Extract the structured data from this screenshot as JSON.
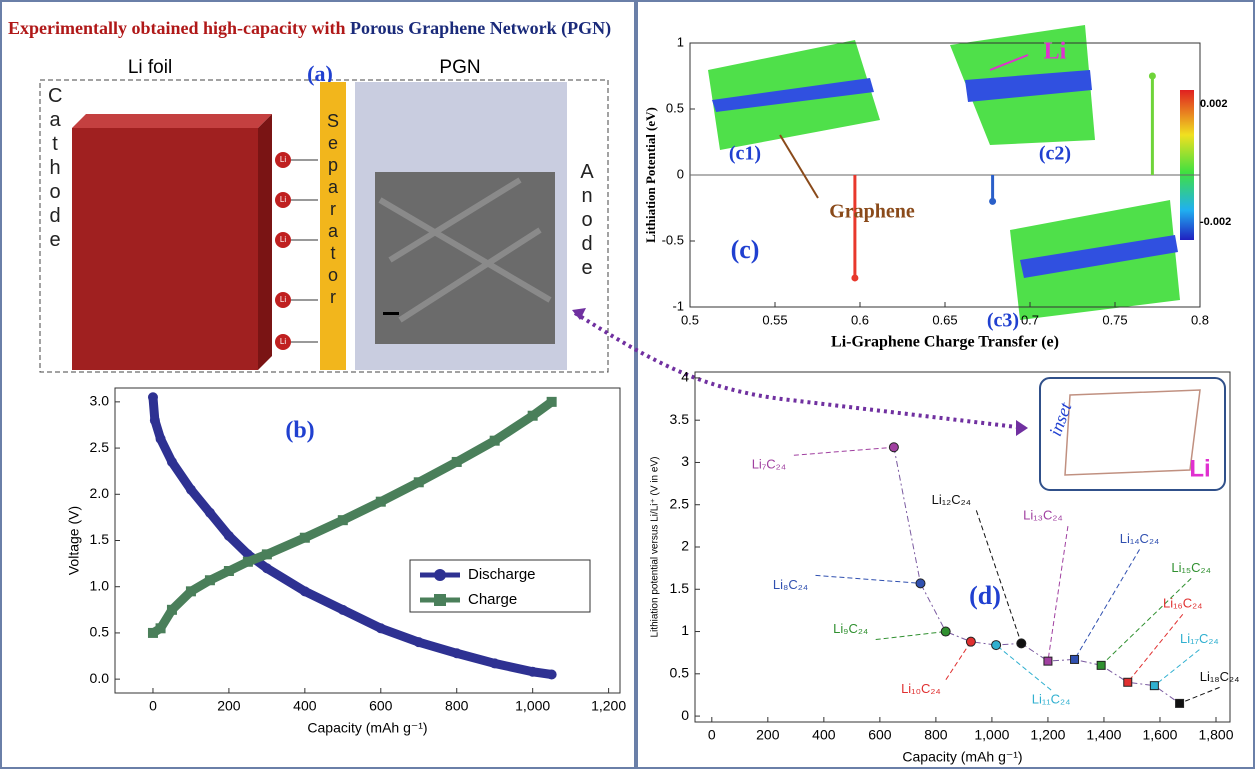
{
  "header": {
    "title_red": "Experimentally obtained high-capacity with",
    "title_blue": "Porous Graphene Network (PGN)"
  },
  "panel_a": {
    "label": "(a)",
    "li_foil": "Li foil",
    "pgn": "PGN",
    "cathode": "Cathode",
    "separator": "Separator",
    "anode": "Anode",
    "li_ion": "Li"
  },
  "chart_data": [
    {
      "type": "line",
      "panel_label": "(b)",
      "x_label": "Capacity (mAh g⁻¹)",
      "y_label": "Voltage (V)",
      "xlim": [
        -100,
        1230
      ],
      "ylim": [
        -0.15,
        3.15
      ],
      "xticks": [
        0,
        200,
        400,
        600,
        800,
        {
          "value": 1000,
          "label": "1,000"
        },
        {
          "value": 1200,
          "label": "1,200"
        }
      ],
      "yticks": [
        {
          "value": 0,
          "label": "0.0"
        },
        0.5,
        {
          "value": 1,
          "label": "1.0"
        },
        1.5,
        {
          "value": 2,
          "label": "2.0"
        },
        2.5,
        {
          "value": 3,
          "label": "3.0"
        }
      ],
      "legend": "lower right",
      "series": [
        {
          "name": "Discharge",
          "color": "#2e3192",
          "marker": "circle",
          "x": [
            0,
            5,
            20,
            50,
            100,
            150,
            200,
            250,
            300,
            400,
            500,
            600,
            700,
            800,
            900,
            1000,
            1050
          ],
          "values": [
            3.05,
            2.8,
            2.6,
            2.35,
            2.05,
            1.8,
            1.55,
            1.35,
            1.2,
            0.95,
            0.75,
            0.55,
            0.4,
            0.28,
            0.17,
            0.08,
            0.05
          ]
        },
        {
          "name": "Charge",
          "color": "#4a7f5a",
          "marker": "square",
          "x": [
            0,
            20,
            50,
            100,
            150,
            200,
            250,
            300,
            400,
            500,
            600,
            700,
            800,
            900,
            1000,
            1050
          ],
          "values": [
            0.5,
            0.55,
            0.75,
            0.95,
            1.07,
            1.17,
            1.27,
            1.35,
            1.53,
            1.72,
            1.92,
            2.13,
            2.35,
            2.58,
            2.85,
            3.0
          ]
        }
      ]
    },
    {
      "type": "stem",
      "panel_label": "(c)",
      "x_label": "Li-Graphene Charge Transfer (e)",
      "y_label": "Lithiation Potential (eV)",
      "xlim": [
        0.5,
        0.8
      ],
      "ylim": [
        -1,
        1
      ],
      "xticks": [
        0.5,
        0.55,
        0.6,
        0.65,
        0.7,
        0.75,
        0.8
      ],
      "yticks": [
        -1,
        -0.5,
        0,
        0.5,
        1
      ],
      "x": [
        0.597,
        0.678,
        0.772
      ],
      "values": [
        -0.78,
        -0.2,
        0.75
      ],
      "colors": [
        "#e8382c",
        "#2a5fc9",
        "#6fd43a"
      ],
      "annotations": [
        "(c1)",
        "(c2)",
        "(c3)",
        "Graphene",
        "Li"
      ],
      "colorbar_ticks": [
        "0.002",
        "-0.002"
      ]
    },
    {
      "type": "scatter",
      "panel_label": "(d)",
      "x_label": "Capacity (mAh g⁻¹)",
      "y_label": "Lithiation potential versus Li/Li⁺ (V in eV)",
      "xlim": [
        -60,
        1850
      ],
      "ylim": [
        -0.07,
        4.07
      ],
      "xticks": [
        0,
        200,
        400,
        600,
        800,
        {
          "value": 1000,
          "label": "1,000"
        },
        {
          "value": 1200,
          "label": "1,200"
        },
        {
          "value": 1400,
          "label": "1,400"
        },
        {
          "value": 1600,
          "label": "1,600"
        },
        {
          "value": 1800,
          "label": "1,800"
        }
      ],
      "yticks": [
        0,
        0.5,
        1,
        1.5,
        2,
        2.5,
        3,
        3.5,
        4
      ],
      "x": [
        650,
        745,
        835,
        925,
        1015,
        1105,
        1200,
        1295,
        1390,
        1485,
        1580,
        1670
      ],
      "values": [
        3.18,
        1.57,
        1.0,
        0.88,
        0.84,
        0.86,
        0.65,
        0.67,
        0.6,
        0.4,
        0.36,
        0.15
      ],
      "labels": [
        "Li₇C₂₄",
        "Li₈C₂₄",
        "Li₉C₂₄",
        "Li₁₀C₂₄",
        "Li₁₁C₂₄",
        "Li₁₂C₂₄",
        "Li₁₃C₂₄",
        "Li₁₄C₂₄",
        "Li₁₅C₂₄",
        "Li₁₆C₂₄",
        "Li₁₇C₂₄",
        "Li₁₈C₂₄"
      ],
      "colors": [
        "#a040a0",
        "#3050b0",
        "#309030",
        "#e03030",
        "#30b0d0",
        "#111111",
        "#a040a0",
        "#3050b0",
        "#309030",
        "#e03030",
        "#30b0d0",
        "#111111"
      ],
      "markers": [
        "circle",
        "circle",
        "circle",
        "circle",
        "circle",
        "circle",
        "square",
        "square",
        "square",
        "square",
        "square",
        "square"
      ],
      "line_color": "#7a5aa0",
      "annotations": [
        "inset",
        "Li"
      ]
    }
  ]
}
